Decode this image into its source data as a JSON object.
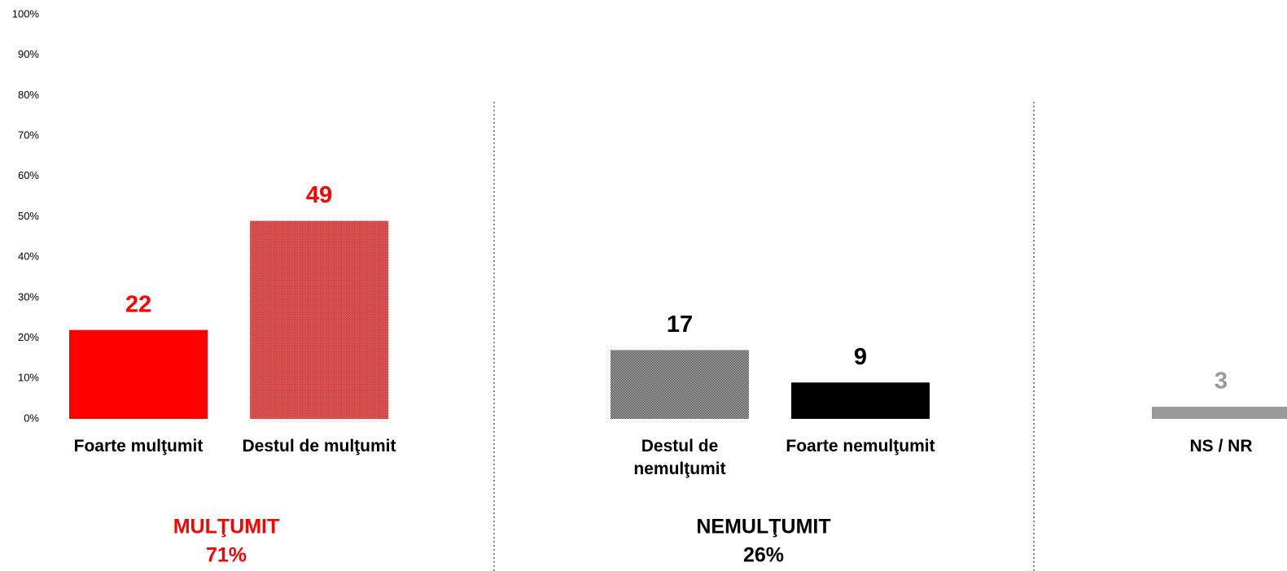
{
  "chart_data": {
    "type": "bar",
    "categories": [
      "Foarte mulţumit",
      "Destul de mulţumit",
      "Destul de\nnemulţumit",
      "Foarte nemulţumit",
      "NS / NR"
    ],
    "values": [
      22,
      49,
      17,
      9,
      3
    ],
    "colors": [
      "#ff0000",
      "#ff0000",
      "#000000",
      "#000000",
      "#999999"
    ],
    "dotted": [
      false,
      true,
      true,
      false,
      false
    ],
    "ylim": [
      0,
      100
    ],
    "yticks": [
      {
        "value": 0,
        "label": "0%"
      },
      {
        "value": 10,
        "label": "10%"
      },
      {
        "value": 20,
        "label": "20%"
      },
      {
        "value": 30,
        "label": "30%"
      },
      {
        "value": 40,
        "label": "40%"
      },
      {
        "value": 50,
        "label": "50%"
      },
      {
        "value": 60,
        "label": "60%"
      },
      {
        "value": 70,
        "label": "70%"
      },
      {
        "value": 80,
        "label": "80%"
      },
      {
        "value": 90,
        "label": "90%"
      },
      {
        "value": 100,
        "label": "100%"
      }
    ],
    "groups": [
      {
        "name": "MULŢUMIT",
        "total": "71%",
        "color": "#ff0000"
      },
      {
        "name": "NEMULŢUMIT",
        "total": "26%",
        "color": "#000000"
      }
    ]
  }
}
